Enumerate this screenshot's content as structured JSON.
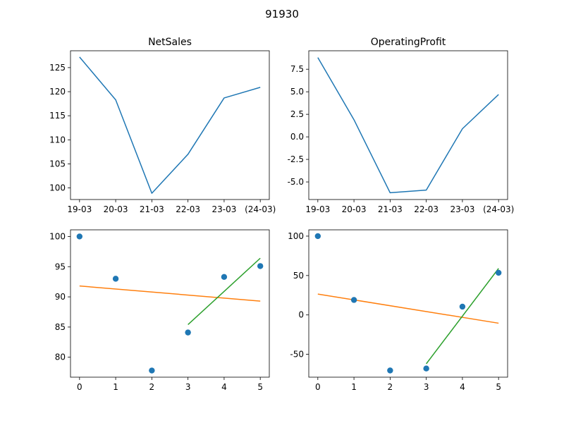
{
  "figure": {
    "suptitle": "91930"
  },
  "colors": {
    "series_blue": "#1f77b4",
    "fit_orange": "#ff7f0e",
    "fit_green": "#2ca02c",
    "axes": "#000000",
    "background": "#ffffff"
  },
  "chart_data": [
    {
      "type": "line",
      "title": "NetSales",
      "xlabel": "",
      "ylabel": "",
      "categories": [
        "19-03",
        "20-03",
        "21-03",
        "22-03",
        "23-03",
        "(24-03)"
      ],
      "values": [
        127.2,
        118.3,
        98.9,
        107.0,
        118.7,
        120.9
      ],
      "ylim": [
        97.6,
        128.5
      ],
      "yticks": [
        "100",
        "105",
        "110",
        "115",
        "120",
        "125"
      ],
      "grid": false
    },
    {
      "type": "line",
      "title": "OperatingProfit",
      "xlabel": "",
      "ylabel": "",
      "categories": [
        "19-03",
        "20-03",
        "21-03",
        "22-03",
        "23-03",
        "(24-03)"
      ],
      "values": [
        8.8,
        1.9,
        -6.2,
        -5.9,
        0.9,
        4.7
      ],
      "ylim": [
        -6.95,
        9.55
      ],
      "yticks": [
        "-5.0",
        "-2.5",
        "0.0",
        "2.5",
        "5.0",
        "7.5"
      ],
      "grid": false
    },
    {
      "type": "scatter",
      "title": "",
      "xlabel": "",
      "ylabel": "",
      "x": [
        0,
        1,
        2,
        3,
        4,
        5
      ],
      "y": [
        100.0,
        93.0,
        77.8,
        84.1,
        93.3,
        95.1
      ],
      "xticks": [
        "0",
        "1",
        "2",
        "3",
        "4",
        "5"
      ],
      "yticks": [
        "80",
        "85",
        "90",
        "95",
        "100"
      ],
      "xlim": [
        -0.25,
        5.25
      ],
      "ylim": [
        76.7,
        101.1
      ],
      "lines": [
        {
          "x": [
            0,
            5
          ],
          "y": [
            91.8,
            89.3
          ],
          "color": "#ff7f0e"
        },
        {
          "x": [
            3,
            5
          ],
          "y": [
            85.4,
            96.4
          ],
          "color": "#2ca02c"
        }
      ],
      "grid": false
    },
    {
      "type": "scatter",
      "title": "",
      "xlabel": "",
      "ylabel": "",
      "x": [
        0,
        1,
        2,
        3,
        4,
        5
      ],
      "y": [
        100.0,
        19.0,
        -70.5,
        -68.0,
        10.5,
        53.5
      ],
      "xticks": [
        "0",
        "1",
        "2",
        "3",
        "4",
        "5"
      ],
      "yticks": [
        "-50",
        "0",
        "50",
        "100"
      ],
      "xlim": [
        -0.25,
        5.25
      ],
      "ylim": [
        -79,
        108
      ],
      "lines": [
        {
          "x": [
            0,
            5
          ],
          "y": [
            26.5,
            -10.5
          ],
          "color": "#ff7f0e"
        },
        {
          "x": [
            3,
            5
          ],
          "y": [
            -62.0,
            59.0
          ],
          "color": "#2ca02c"
        }
      ],
      "grid": false
    }
  ]
}
